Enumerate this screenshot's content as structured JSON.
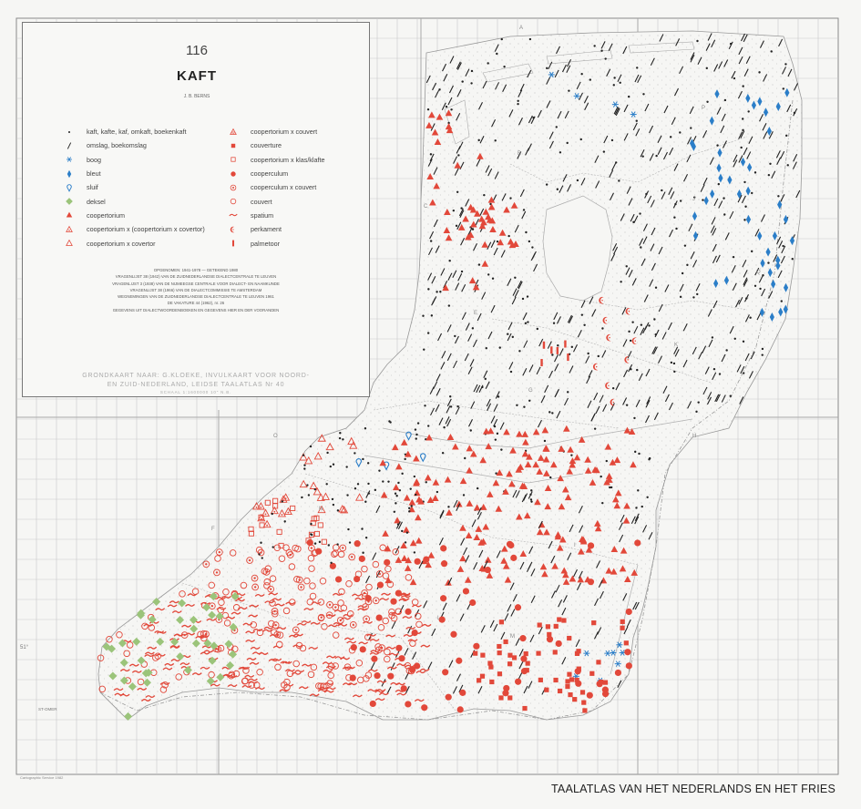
{
  "map": {
    "number": "116",
    "title": "KAFT",
    "author": "J. B. BERNS",
    "atlas_title": "TAALATLAS VAN HET NEDERLANDS EN HET FRIES",
    "printer": "Cartographic Service 1982",
    "colors": {
      "red": "#e2483a",
      "blue": "#2b7ec8",
      "green": "#9bc47a",
      "black": "#222222",
      "grid": "#9b9b9b"
    }
  },
  "legend": {
    "left": [
      {
        "symbol": "dot",
        "color": "#222222",
        "label": "kaft, kafte, kaf, omkaft, boekenkaft"
      },
      {
        "symbol": "slash",
        "color": "#222222",
        "label": "omslag, boekomslag"
      },
      {
        "symbol": "asterisk",
        "color": "#2b7ec8",
        "label": "boog"
      },
      {
        "symbol": "diamond",
        "color": "#2b7ec8",
        "label": "bleut"
      },
      {
        "symbol": "pin",
        "color": "#2b7ec8",
        "label": "sluif"
      },
      {
        "symbol": "green-diamond",
        "color": "#9bc47a",
        "label": "deksel"
      },
      {
        "symbol": "triangle",
        "color": "#e2483a",
        "label": "coopertorium"
      },
      {
        "symbol": "triangle-open-dot",
        "color": "#e2483a",
        "label": "coopertorium x (coopertorium x covertor)"
      },
      {
        "symbol": "triangle-open",
        "color": "#e2483a",
        "label": "coopertorium x covertor"
      }
    ],
    "right": [
      {
        "symbol": "triangle-circle",
        "color": "#e2483a",
        "label": "coopertorium x couvert"
      },
      {
        "symbol": "square",
        "color": "#e2483a",
        "label": "couverture"
      },
      {
        "symbol": "square-open",
        "color": "#e2483a",
        "label": "coopertorium x klas/klafte"
      },
      {
        "symbol": "circle",
        "color": "#e2483a",
        "label": "cooperculum"
      },
      {
        "symbol": "circle-dot",
        "color": "#e2483a",
        "label": "cooperculum x couvert"
      },
      {
        "symbol": "circle-open",
        "color": "#e2483a",
        "label": "couvert"
      },
      {
        "symbol": "wave",
        "color": "#e2483a",
        "label": "spatium"
      },
      {
        "symbol": "crescent",
        "color": "#e2483a",
        "label": "perkament"
      },
      {
        "symbol": "bar",
        "color": "#e2483a",
        "label": "palmetoor"
      }
    ]
  },
  "notes": [
    "OPGENOMEN: 1941-1978 — GETEKEND 1980",
    "VRAGENLIJST 38 (1942) VAN DE ZUIDNEDERLANDSE DIALECTCENTRALE TE LEUVEN",
    "VRAGENLIJST 3 (1938) VAN DE NIJMEEGSE CENTRALE VOOR DIALECT- EN NAAMKUNDE",
    "VRAGENLIJST 38 (1966) VAN DE DIALECTCOMMISSIE TE AMSTERDAM",
    "WEGNEMINGEN VAN DE ZUIDNEDERLANDSE DIALECTCENTRALE TE LEUVEN 1961",
    "DE VAKATURE 44 (1962), nr. 26",
    "GEGEVENS UIT DIALECTWOORDENBOEKEN EN GEGEVENS HIER EN DER VOORANDEN"
  ],
  "basemap": {
    "line1": "GRONDKAART NAAR: G.KLOEKE, INVULKAART VOOR NOORD-",
    "line2": "EN ZUID-NEDERLAND, LEIDSE TAALATLAS Nr 40",
    "line3": "SCHAAL   1:1600000   10\" N.B."
  },
  "grid_letters": [
    "A",
    "B",
    "C",
    "D",
    "E",
    "F",
    "G",
    "H",
    "I",
    "J",
    "K",
    "L",
    "M",
    "N",
    "O",
    "P",
    "Q"
  ],
  "edge_labels": {
    "lat": "51°",
    "place": "ST-OMER"
  }
}
